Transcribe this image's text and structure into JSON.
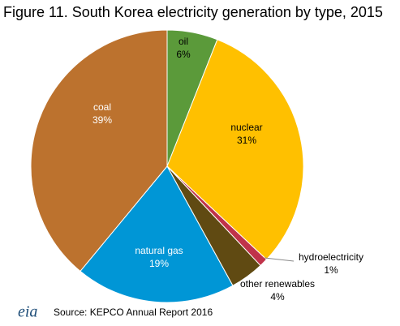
{
  "chart_data": {
    "type": "pie",
    "title": "Figure 11. South Korea electricity generation by type, 2015",
    "categories": [
      "oil",
      "nuclear",
      "hydroelectricity",
      "other renewables",
      "natural gas",
      "coal"
    ],
    "values": [
      6,
      31,
      1,
      4,
      19,
      39
    ],
    "value_labels": [
      "6%",
      "31%",
      "1%",
      "4%",
      "19%",
      "39%"
    ],
    "colors": [
      "#5b9a3a",
      "#ffc000",
      "#c0334a",
      "#604a12",
      "#0096d6",
      "#bc722e"
    ],
    "source": "Source: KEPCO Annual Report 2016",
    "logo": "eia"
  }
}
